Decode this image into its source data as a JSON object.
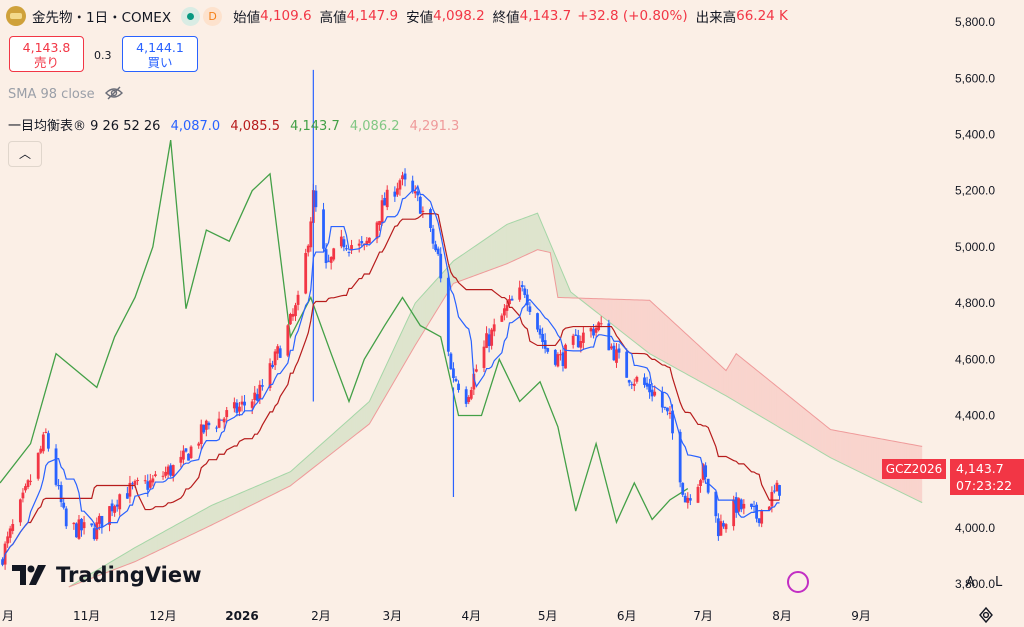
{
  "header": {
    "symbol": "金先物・1日・COMEX",
    "open_label": "始値",
    "open": "4,109.6",
    "high_label": "高値",
    "high": "4,147.9",
    "low_label": "安値",
    "low": "4,098.2",
    "close_label": "終値",
    "close": "4,143.7",
    "change": "+32.8 (+0.80%)",
    "volume_label": "出来高",
    "volume": "66.24 K",
    "delayed_badge": "D"
  },
  "trade": {
    "sell_price": "4,143.8",
    "sell_label": "売り",
    "spread": "0.3",
    "buy_price": "4,144.1",
    "buy_label": "買い"
  },
  "indicators": {
    "sma_label": "SMA 98 close",
    "ichimoku_label": "一目均衡表® 9 26 52 26",
    "ichimoku_values": [
      "4,087.0",
      "4,085.5",
      "4,143.7",
      "4,086.2",
      "4,291.3"
    ]
  },
  "ticker_label": "GCZ2026",
  "price_label": "4,143.7",
  "countdown": "07:23:22",
  "brand": "TradingView",
  "scale_buttons": [
    "A",
    "L"
  ],
  "colors": {
    "up": "#f23645",
    "down": "#2962ff",
    "tenkan": "#2962ff",
    "kijun": "#b71c1c",
    "chikou": "#43a047",
    "span_a": "#a5d6a7",
    "span_b": "#ef9a9a",
    "background": "#fbefe6"
  },
  "chart_data": {
    "type": "candlestick",
    "x_ticks": [
      "月",
      "11月",
      "12月",
      "2026",
      "2月",
      "3月",
      "4月",
      "5月",
      "6月",
      "7月",
      "8月",
      "9月"
    ],
    "y_ticks": [
      "5,800.0",
      "5,600.0",
      "5,400.0",
      "5,200.0",
      "5,000.0",
      "4,800.0",
      "4,600.0",
      "4,400.0",
      "4,200.0",
      "4,000.0",
      "3,800.0"
    ],
    "ylim": [
      3740,
      5850
    ],
    "x_range": [
      "2025-09-28",
      "2026-10-02"
    ],
    "last_date": "2026-07-31",
    "price_waypoints": [
      [
        "2025-09-28",
        3880
      ],
      [
        "2025-10-08",
        4120
      ],
      [
        "2025-10-16",
        4330
      ],
      [
        "2025-10-24",
        4000
      ],
      [
        "2025-11-04",
        3990
      ],
      [
        "2025-11-14",
        4120
      ],
      [
        "2025-11-26",
        4160
      ],
      [
        "2025-12-08",
        4230
      ],
      [
        "2025-12-18",
        4360
      ],
      [
        "2025-12-30",
        4420
      ],
      [
        "2026-01-08",
        4480
      ],
      [
        "2026-01-16",
        4640
      ],
      [
        "2026-01-24",
        4820
      ],
      [
        "2026-01-29",
        5180
      ],
      [
        "2026-02-03",
        4920
      ],
      [
        "2026-02-10",
        5020
      ],
      [
        "2026-02-18",
        4990
      ],
      [
        "2026-02-25",
        5140
      ],
      [
        "2026-03-04",
        5240
      ],
      [
        "2026-03-12",
        5150
      ],
      [
        "2026-03-19",
        4960
      ],
      [
        "2026-03-24",
        4560
      ],
      [
        "2026-03-30",
        4470
      ],
      [
        "2026-04-07",
        4660
      ],
      [
        "2026-04-15",
        4780
      ],
      [
        "2026-04-22",
        4850
      ],
      [
        "2026-04-30",
        4640
      ],
      [
        "2026-05-06",
        4600
      ],
      [
        "2026-05-14",
        4680
      ],
      [
        "2026-05-21",
        4720
      ],
      [
        "2026-06-01",
        4550
      ],
      [
        "2026-06-12",
        4480
      ],
      [
        "2026-06-18",
        4380
      ],
      [
        "2026-06-24",
        4100
      ],
      [
        "2026-07-01",
        4200
      ],
      [
        "2026-07-07",
        4000
      ],
      [
        "2026-07-14",
        4080
      ],
      [
        "2026-07-22",
        4040
      ],
      [
        "2026-07-31",
        4143.7
      ]
    ],
    "spikes": [
      {
        "date": "2026-01-29",
        "high": 5630,
        "low": 4450
      },
      {
        "date": "2026-03-25",
        "high": 4500,
        "low": 4110
      }
    ],
    "kumo_a": [
      [
        "2025-10-25",
        3790
      ],
      [
        "2025-11-20",
        3930
      ],
      [
        "2025-12-20",
        4080
      ],
      [
        "2026-01-20",
        4200
      ],
      [
        "2026-02-20",
        4450
      ],
      [
        "2026-03-10",
        4800
      ],
      [
        "2026-03-25",
        4950
      ],
      [
        "2026-04-15",
        5080
      ],
      [
        "2026-04-27",
        5120
      ],
      [
        "2026-05-10",
        4840
      ],
      [
        "2026-06-10",
        4620
      ],
      [
        "2026-07-10",
        4470
      ],
      [
        "2026-08-20",
        4250
      ],
      [
        "2026-09-25",
        4090
      ]
    ],
    "kumo_b": [
      [
        "2025-10-25",
        3790
      ],
      [
        "2025-11-20",
        3880
      ],
      [
        "2025-12-20",
        4010
      ],
      [
        "2026-01-20",
        4150
      ],
      [
        "2026-02-20",
        4370
      ],
      [
        "2026-03-10",
        4650
      ],
      [
        "2026-03-25",
        4870
      ],
      [
        "2026-04-15",
        4940
      ],
      [
        "2026-04-27",
        4990
      ],
      [
        "2026-05-02",
        4980
      ],
      [
        "2026-05-05",
        4820
      ],
      [
        "2026-06-10",
        4810
      ],
      [
        "2026-07-10",
        4560
      ],
      [
        "2026-07-14",
        4620
      ],
      [
        "2026-08-20",
        4350
      ],
      [
        "2026-09-25",
        4290
      ]
    ],
    "chikou": [
      [
        "2025-09-28",
        4160
      ],
      [
        "2025-10-10",
        4300
      ],
      [
        "2025-10-20",
        4620
      ],
      [
        "2025-11-05",
        4500
      ],
      [
        "2025-11-12",
        4680
      ],
      [
        "2025-11-20",
        4820
      ],
      [
        "2025-11-27",
        5000
      ],
      [
        "2025-12-04",
        5380
      ],
      [
        "2025-12-10",
        4780
      ],
      [
        "2025-12-18",
        5060
      ],
      [
        "2025-12-27",
        5020
      ],
      [
        "2026-01-05",
        5200
      ],
      [
        "2026-01-12",
        5260
      ],
      [
        "2026-01-20",
        4680
      ],
      [
        "2026-01-28",
        4820
      ],
      [
        "2026-02-05",
        4620
      ],
      [
        "2026-02-12",
        4450
      ],
      [
        "2026-02-18",
        4600
      ],
      [
        "2026-02-26",
        4720
      ],
      [
        "2026-03-05",
        4820
      ],
      [
        "2026-03-12",
        4720
      ],
      [
        "2026-03-20",
        4680
      ],
      [
        "2026-03-27",
        4400
      ],
      [
        "2026-04-05",
        4400
      ],
      [
        "2026-04-12",
        4600
      ],
      [
        "2026-04-20",
        4450
      ],
      [
        "2026-04-28",
        4520
      ],
      [
        "2026-05-05",
        4360
      ],
      [
        "2026-05-12",
        4060
      ],
      [
        "2026-05-20",
        4300
      ],
      [
        "2026-05-28",
        4020
      ],
      [
        "2026-06-04",
        4160
      ],
      [
        "2026-06-11",
        4030
      ],
      [
        "2026-06-18",
        4100
      ],
      [
        "2026-06-25",
        4140
      ]
    ]
  }
}
